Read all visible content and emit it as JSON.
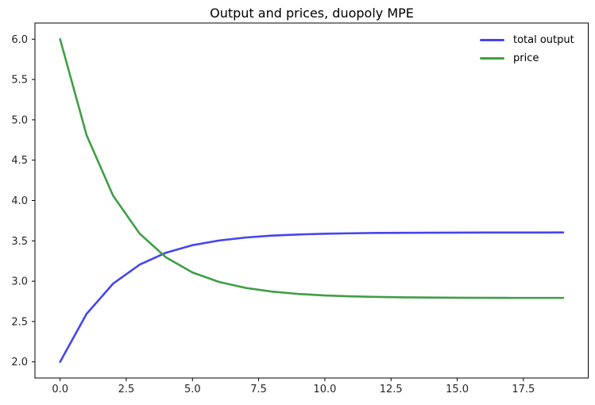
{
  "chart_data": {
    "type": "line",
    "title": "Output and prices, duopoly MPE",
    "xlabel": "",
    "ylabel": "",
    "x": [
      0,
      1,
      2,
      3,
      4,
      5,
      6,
      7,
      8,
      9,
      10,
      11,
      12,
      13,
      14,
      15,
      16,
      17,
      18,
      19
    ],
    "series": [
      {
        "name": "total output",
        "color": "#4545ee",
        "values": [
          2.0,
          2.595,
          2.969,
          3.204,
          3.353,
          3.446,
          3.504,
          3.541,
          3.565,
          3.579,
          3.588,
          3.594,
          3.598,
          3.6,
          3.601,
          3.602,
          3.603,
          3.603,
          3.603,
          3.604
        ]
      },
      {
        "name": "price",
        "color": "#3f9e46",
        "values": [
          6.0,
          4.81,
          4.061,
          3.591,
          3.295,
          3.108,
          2.991,
          2.917,
          2.871,
          2.842,
          2.823,
          2.812,
          2.805,
          2.8,
          2.797,
          2.795,
          2.794,
          2.793,
          2.793,
          2.793
        ]
      }
    ],
    "xlim": [
      -0.95,
      19.95
    ],
    "ylim": [
      1.8,
      6.2
    ],
    "x_ticks": [
      0.0,
      2.5,
      5.0,
      7.5,
      10.0,
      12.5,
      15.0,
      17.5
    ],
    "x_tick_labels": [
      "0.0",
      "2.5",
      "5.0",
      "7.5",
      "10.0",
      "12.5",
      "15.0",
      "17.5"
    ],
    "y_ticks": [
      2.0,
      2.5,
      3.0,
      3.5,
      4.0,
      4.5,
      5.0,
      5.5,
      6.0
    ],
    "y_tick_labels": [
      "2.0",
      "2.5",
      "3.0",
      "3.5",
      "4.0",
      "4.5",
      "5.0",
      "5.5",
      "6.0"
    ],
    "grid": false,
    "legend_position": "upper right",
    "colors": {
      "spine": "#000000",
      "tick_label": "#262626",
      "background": "#ffffff"
    }
  }
}
